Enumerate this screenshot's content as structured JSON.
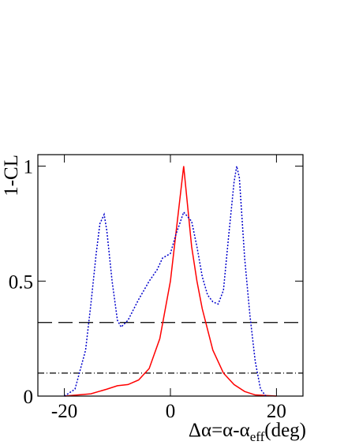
{
  "chart_data": {
    "type": "line",
    "x_label_parts": [
      "Δα=α-α",
      "eff",
      "(deg)"
    ],
    "y_label": "1-CL",
    "xlim": [
      -25,
      25
    ],
    "ylim": [
      0,
      1.05
    ],
    "xticks": [
      -20,
      0,
      20
    ],
    "yticks": [
      0,
      0.5,
      1
    ],
    "hlines": [
      {
        "value": 0.32,
        "style": "dashed"
      },
      {
        "value": 0.1,
        "style": "dashdot"
      }
    ],
    "series": [
      {
        "color": "#ff0000",
        "style": "solid",
        "x": [
          -20,
          -15,
          -12,
          -10,
          -8,
          -6,
          -4,
          -2,
          0,
          1,
          2.5,
          4,
          5,
          6,
          8,
          10,
          12,
          14,
          16,
          20
        ],
        "values": [
          0,
          0.01,
          0.03,
          0.045,
          0.05,
          0.07,
          0.12,
          0.25,
          0.5,
          0.7,
          1.0,
          0.65,
          0.5,
          0.38,
          0.2,
          0.1,
          0.05,
          0.02,
          0.005,
          0
        ]
      },
      {
        "color": "#0000cc",
        "style": "dotted",
        "x": [
          -20,
          -18,
          -16,
          -15,
          -14,
          -13.3,
          -12.5,
          -12,
          -11,
          -10,
          -9.3,
          -8,
          -6,
          -4,
          -2.5,
          -1.5,
          0,
          1,
          2.5,
          4,
          5,
          6,
          7,
          8,
          9,
          10,
          11,
          12,
          12.5,
          13,
          14,
          15,
          16,
          17,
          18
        ],
        "values": [
          0,
          0.03,
          0.2,
          0.4,
          0.62,
          0.75,
          0.79,
          0.72,
          0.5,
          0.33,
          0.3,
          0.33,
          0.42,
          0.5,
          0.55,
          0.6,
          0.62,
          0.7,
          0.8,
          0.76,
          0.65,
          0.52,
          0.44,
          0.41,
          0.4,
          0.46,
          0.7,
          0.93,
          1.0,
          0.95,
          0.6,
          0.35,
          0.15,
          0.03,
          0
        ]
      }
    ]
  }
}
